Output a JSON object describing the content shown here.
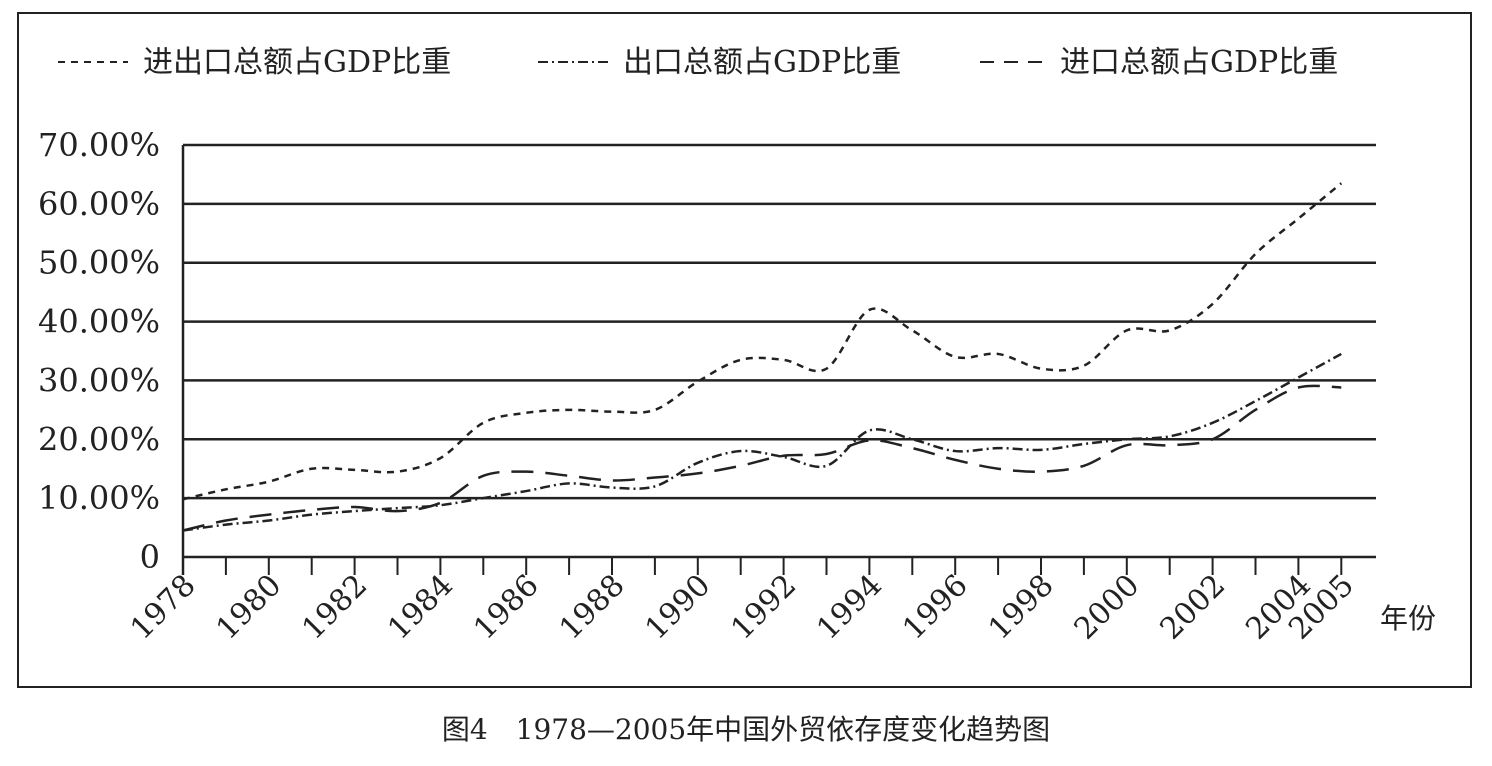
{
  "chart_data": {
    "type": "line",
    "title": "",
    "caption": "图4　1978—2005年中国外贸依存度变化趋势图",
    "xlabel": "年份",
    "ylabel": "",
    "ylim": [
      0,
      70
    ],
    "y_ticks": [
      "0",
      "10.00%",
      "20.00%",
      "30.00%",
      "40.00%",
      "50.00%",
      "60.00%",
      "70.00%"
    ],
    "x_tick_labels": [
      "1978",
      "1980",
      "1982",
      "1984",
      "1986",
      "1988",
      "1990",
      "1992",
      "1994",
      "1996",
      "1998",
      "2000",
      "2002",
      "2004",
      "2005"
    ],
    "x": [
      1978,
      1979,
      1980,
      1981,
      1982,
      1983,
      1984,
      1985,
      1986,
      1987,
      1988,
      1989,
      1990,
      1991,
      1992,
      1993,
      1994,
      1995,
      1996,
      1997,
      1998,
      1999,
      2000,
      2001,
      2002,
      2003,
      2004,
      2005
    ],
    "grid": true,
    "legend_position": "top",
    "series": [
      {
        "name": "进出口总额占GDP比重",
        "style": "short-dash",
        "values": [
          9.8,
          11.5,
          12.8,
          15.0,
          14.8,
          14.5,
          16.8,
          22.8,
          24.5,
          25.0,
          24.7,
          25.0,
          29.8,
          33.5,
          33.5,
          32.0,
          42.0,
          38.5,
          34.0,
          34.5,
          32.0,
          32.5,
          38.5,
          38.5,
          43.0,
          51.5,
          57.5,
          63.5
        ]
      },
      {
        "name": "出口总额占GDP比重",
        "style": "dash-dot",
        "values": [
          4.5,
          5.5,
          6.2,
          7.2,
          7.8,
          8.3,
          8.8,
          10.0,
          11.2,
          12.5,
          11.8,
          12.0,
          16.0,
          18.0,
          17.0,
          15.5,
          21.5,
          20.0,
          18.0,
          18.5,
          18.2,
          19.2,
          20.0,
          20.5,
          22.8,
          26.5,
          30.5,
          34.5
        ]
      },
      {
        "name": "进口总额占GDP比重",
        "style": "long-dash",
        "values": [
          4.5,
          6.2,
          7.2,
          8.0,
          8.5,
          7.8,
          9.2,
          13.8,
          14.5,
          13.8,
          13.0,
          13.5,
          14.2,
          15.5,
          17.2,
          17.5,
          19.8,
          18.5,
          16.5,
          15.0,
          14.5,
          15.5,
          19.0,
          19.0,
          20.0,
          25.0,
          28.8,
          28.8
        ]
      }
    ]
  }
}
